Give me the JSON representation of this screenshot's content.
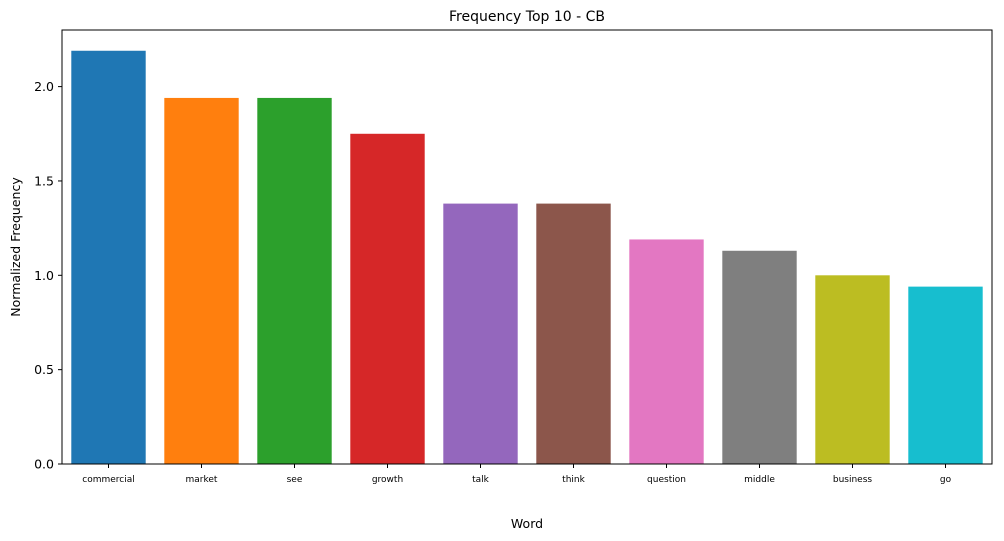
{
  "chart_data": {
    "type": "bar",
    "title": "Frequency Top 10 - CB",
    "xlabel": "Word",
    "ylabel": "Normalized Frequency",
    "categories": [
      "commercial",
      "market",
      "see",
      "growth",
      "talk",
      "think",
      "question",
      "middle",
      "business",
      "go"
    ],
    "values": [
      2.19,
      1.94,
      1.94,
      1.75,
      1.38,
      1.38,
      1.19,
      1.13,
      1.0,
      0.94
    ],
    "colors": [
      "#1f77b4",
      "#ff7f0e",
      "#2ca02c",
      "#d62728",
      "#9467bd",
      "#8c564b",
      "#e377c2",
      "#7f7f7f",
      "#bcbd22",
      "#17becf"
    ],
    "ylim": [
      0,
      2.3
    ],
    "yticks": [
      "0.0",
      "0.5",
      "1.0",
      "1.5",
      "2.0"
    ],
    "grid": false,
    "legend": "none"
  }
}
